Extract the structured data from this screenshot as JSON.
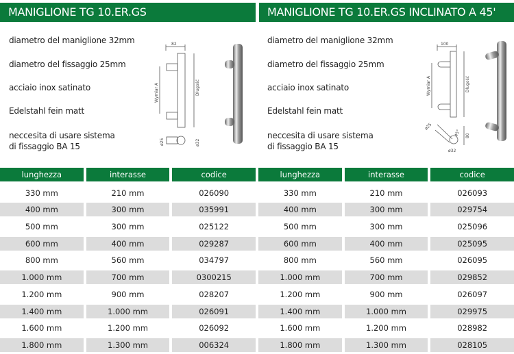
{
  "left": {
    "title": "MANIGLIONE TG 10.ER.GS",
    "specs": [
      "diametro del maniglione 32mm",
      "diametro del fissaggio 25mm",
      "acciaio inox satinato",
      "Edelstahl fein matt",
      "neccesita di usare sistema",
      "di fissaggio BA 15"
    ],
    "drawing": {
      "width": "82",
      "wymiar": "Wymiar A",
      "length": "Długość",
      "d25": "ø25",
      "d32": "ø32"
    },
    "headers": [
      "lunghezza",
      "interasse",
      "codice"
    ],
    "rows": [
      [
        "330 mm",
        "210 mm",
        "026090"
      ],
      [
        "400 mm",
        "300 mm",
        "035991"
      ],
      [
        "500 mm",
        "300 mm",
        "025122"
      ],
      [
        "600 mm",
        "400 mm",
        "029287"
      ],
      [
        "800 mm",
        "560 mm",
        "034797"
      ],
      [
        "1.000 mm",
        "700 mm",
        "0300215"
      ],
      [
        "1.200 mm",
        "900 mm",
        "028207"
      ],
      [
        "1.400 mm",
        "1.000 mm",
        "026091"
      ],
      [
        "1.600 mm",
        "1.200 mm",
        "026092"
      ],
      [
        "1.800 mm",
        "1.300 mm",
        "006324"
      ]
    ]
  },
  "right": {
    "title": "MANIGLIONE TG 10.ER.GS INCLINATO A 45'",
    "specs": [
      "diametro del maniglione 32mm",
      "diametro del fissaggio 25mm",
      "acciaio inox satinato",
      "Edelstahl fein matt",
      "neccesita di usare sistema",
      "di fissaggio BA 15"
    ],
    "drawing": {
      "width": "100",
      "wymiar": "Wymiar A",
      "length": "Długość",
      "d25": "ø25",
      "d32": "ø32",
      "angle": "45°",
      "depth": "80"
    },
    "headers": [
      "lunghezza",
      "interasse",
      "codice"
    ],
    "rows": [
      [
        "330 mm",
        "210 mm",
        "026093"
      ],
      [
        "400 mm",
        "300 mm",
        "029754"
      ],
      [
        "500 mm",
        "300 mm",
        "025096"
      ],
      [
        "600 mm",
        "400 mm",
        "025095"
      ],
      [
        "800 mm",
        "560 mm",
        "026095"
      ],
      [
        "1.000 mm",
        "700 mm",
        "029852"
      ],
      [
        "1.200 mm",
        "900 mm",
        "026097"
      ],
      [
        "1.400 mm",
        "1.000 mm",
        "029975"
      ],
      [
        "1.600 mm",
        "1.200 mm",
        "028982"
      ],
      [
        "1.800 mm",
        "1.300 mm",
        "028105"
      ]
    ]
  },
  "colors": {
    "accent": "#0b7a3b",
    "row_alt": "#dcdcdc"
  }
}
